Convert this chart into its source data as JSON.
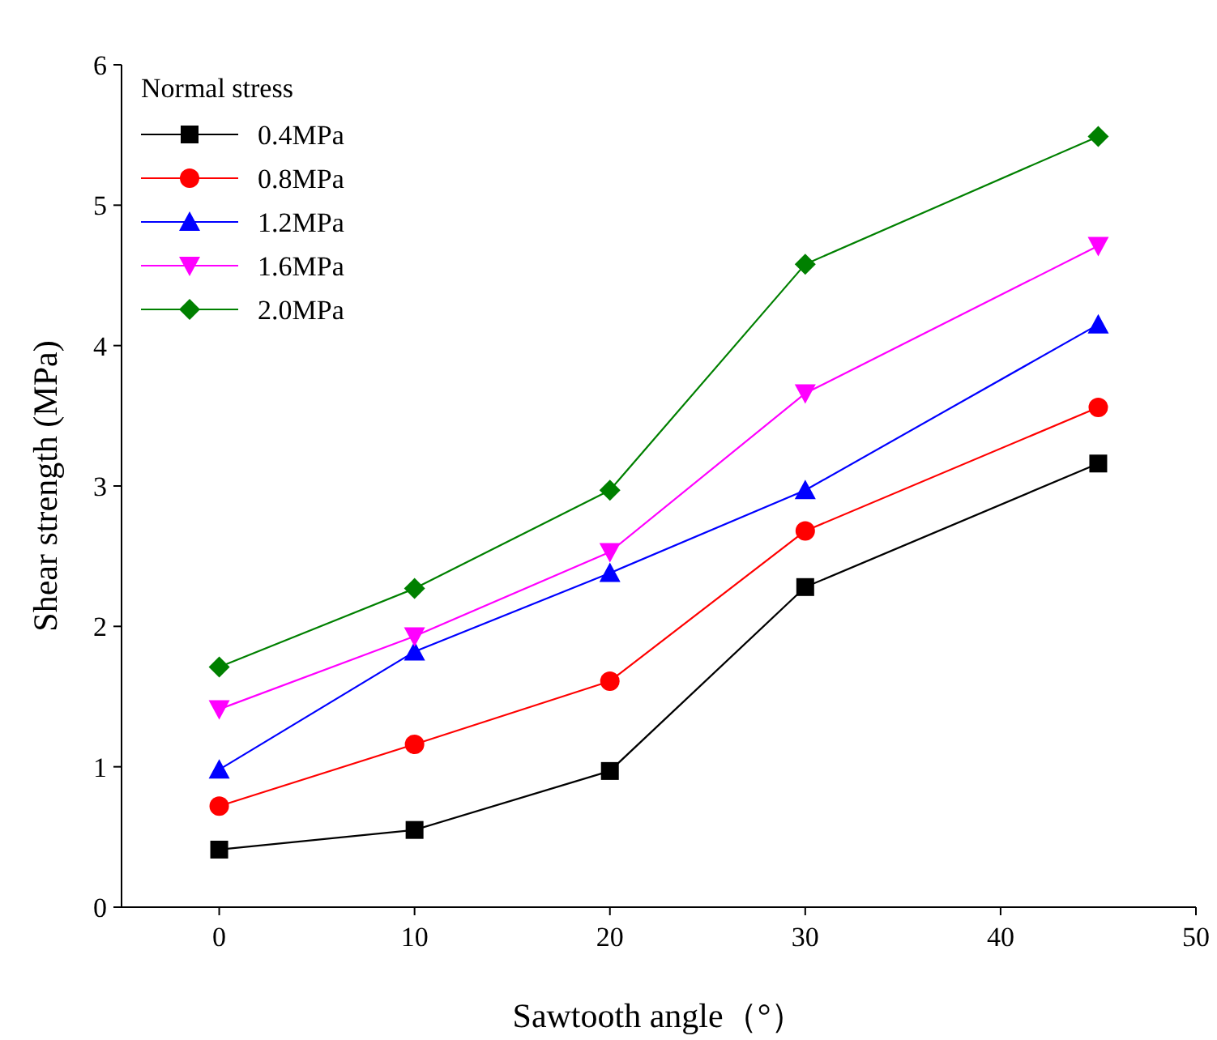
{
  "chart_data": {
    "type": "line",
    "xlabel": "Sawtooth angle（°）",
    "ylabel": "Shear strength (MPa)",
    "legend_title": "Normal stress",
    "legend": "top left",
    "x": [
      0,
      10,
      20,
      30,
      45
    ],
    "xlim": [
      -5,
      50
    ],
    "xticks": [
      0,
      10,
      20,
      30,
      40,
      50
    ],
    "ylim": [
      0,
      6
    ],
    "yticks": [
      0,
      1,
      2,
      3,
      4,
      5,
      6
    ],
    "grid": false,
    "series": [
      {
        "name": "0.4MPa",
        "color": "#000000",
        "marker": "square",
        "values": [
          0.41,
          0.55,
          0.97,
          2.28,
          3.16
        ]
      },
      {
        "name": "0.8MPa",
        "color": "#ff0000",
        "marker": "circle",
        "values": [
          0.72,
          1.16,
          1.61,
          2.68,
          3.56
        ]
      },
      {
        "name": "1.2MPa",
        "color": "#0000ff",
        "marker": "triangle",
        "values": [
          0.98,
          1.82,
          2.38,
          2.97,
          4.15
        ]
      },
      {
        "name": "1.6MPa",
        "color": "#ff00ff",
        "marker": "triangle_down",
        "values": [
          1.41,
          1.93,
          2.53,
          3.66,
          4.71
        ]
      },
      {
        "name": "2.0MPa",
        "color": "#008000",
        "marker": "diamond",
        "values": [
          1.71,
          2.27,
          2.97,
          4.58,
          5.49
        ]
      }
    ]
  }
}
